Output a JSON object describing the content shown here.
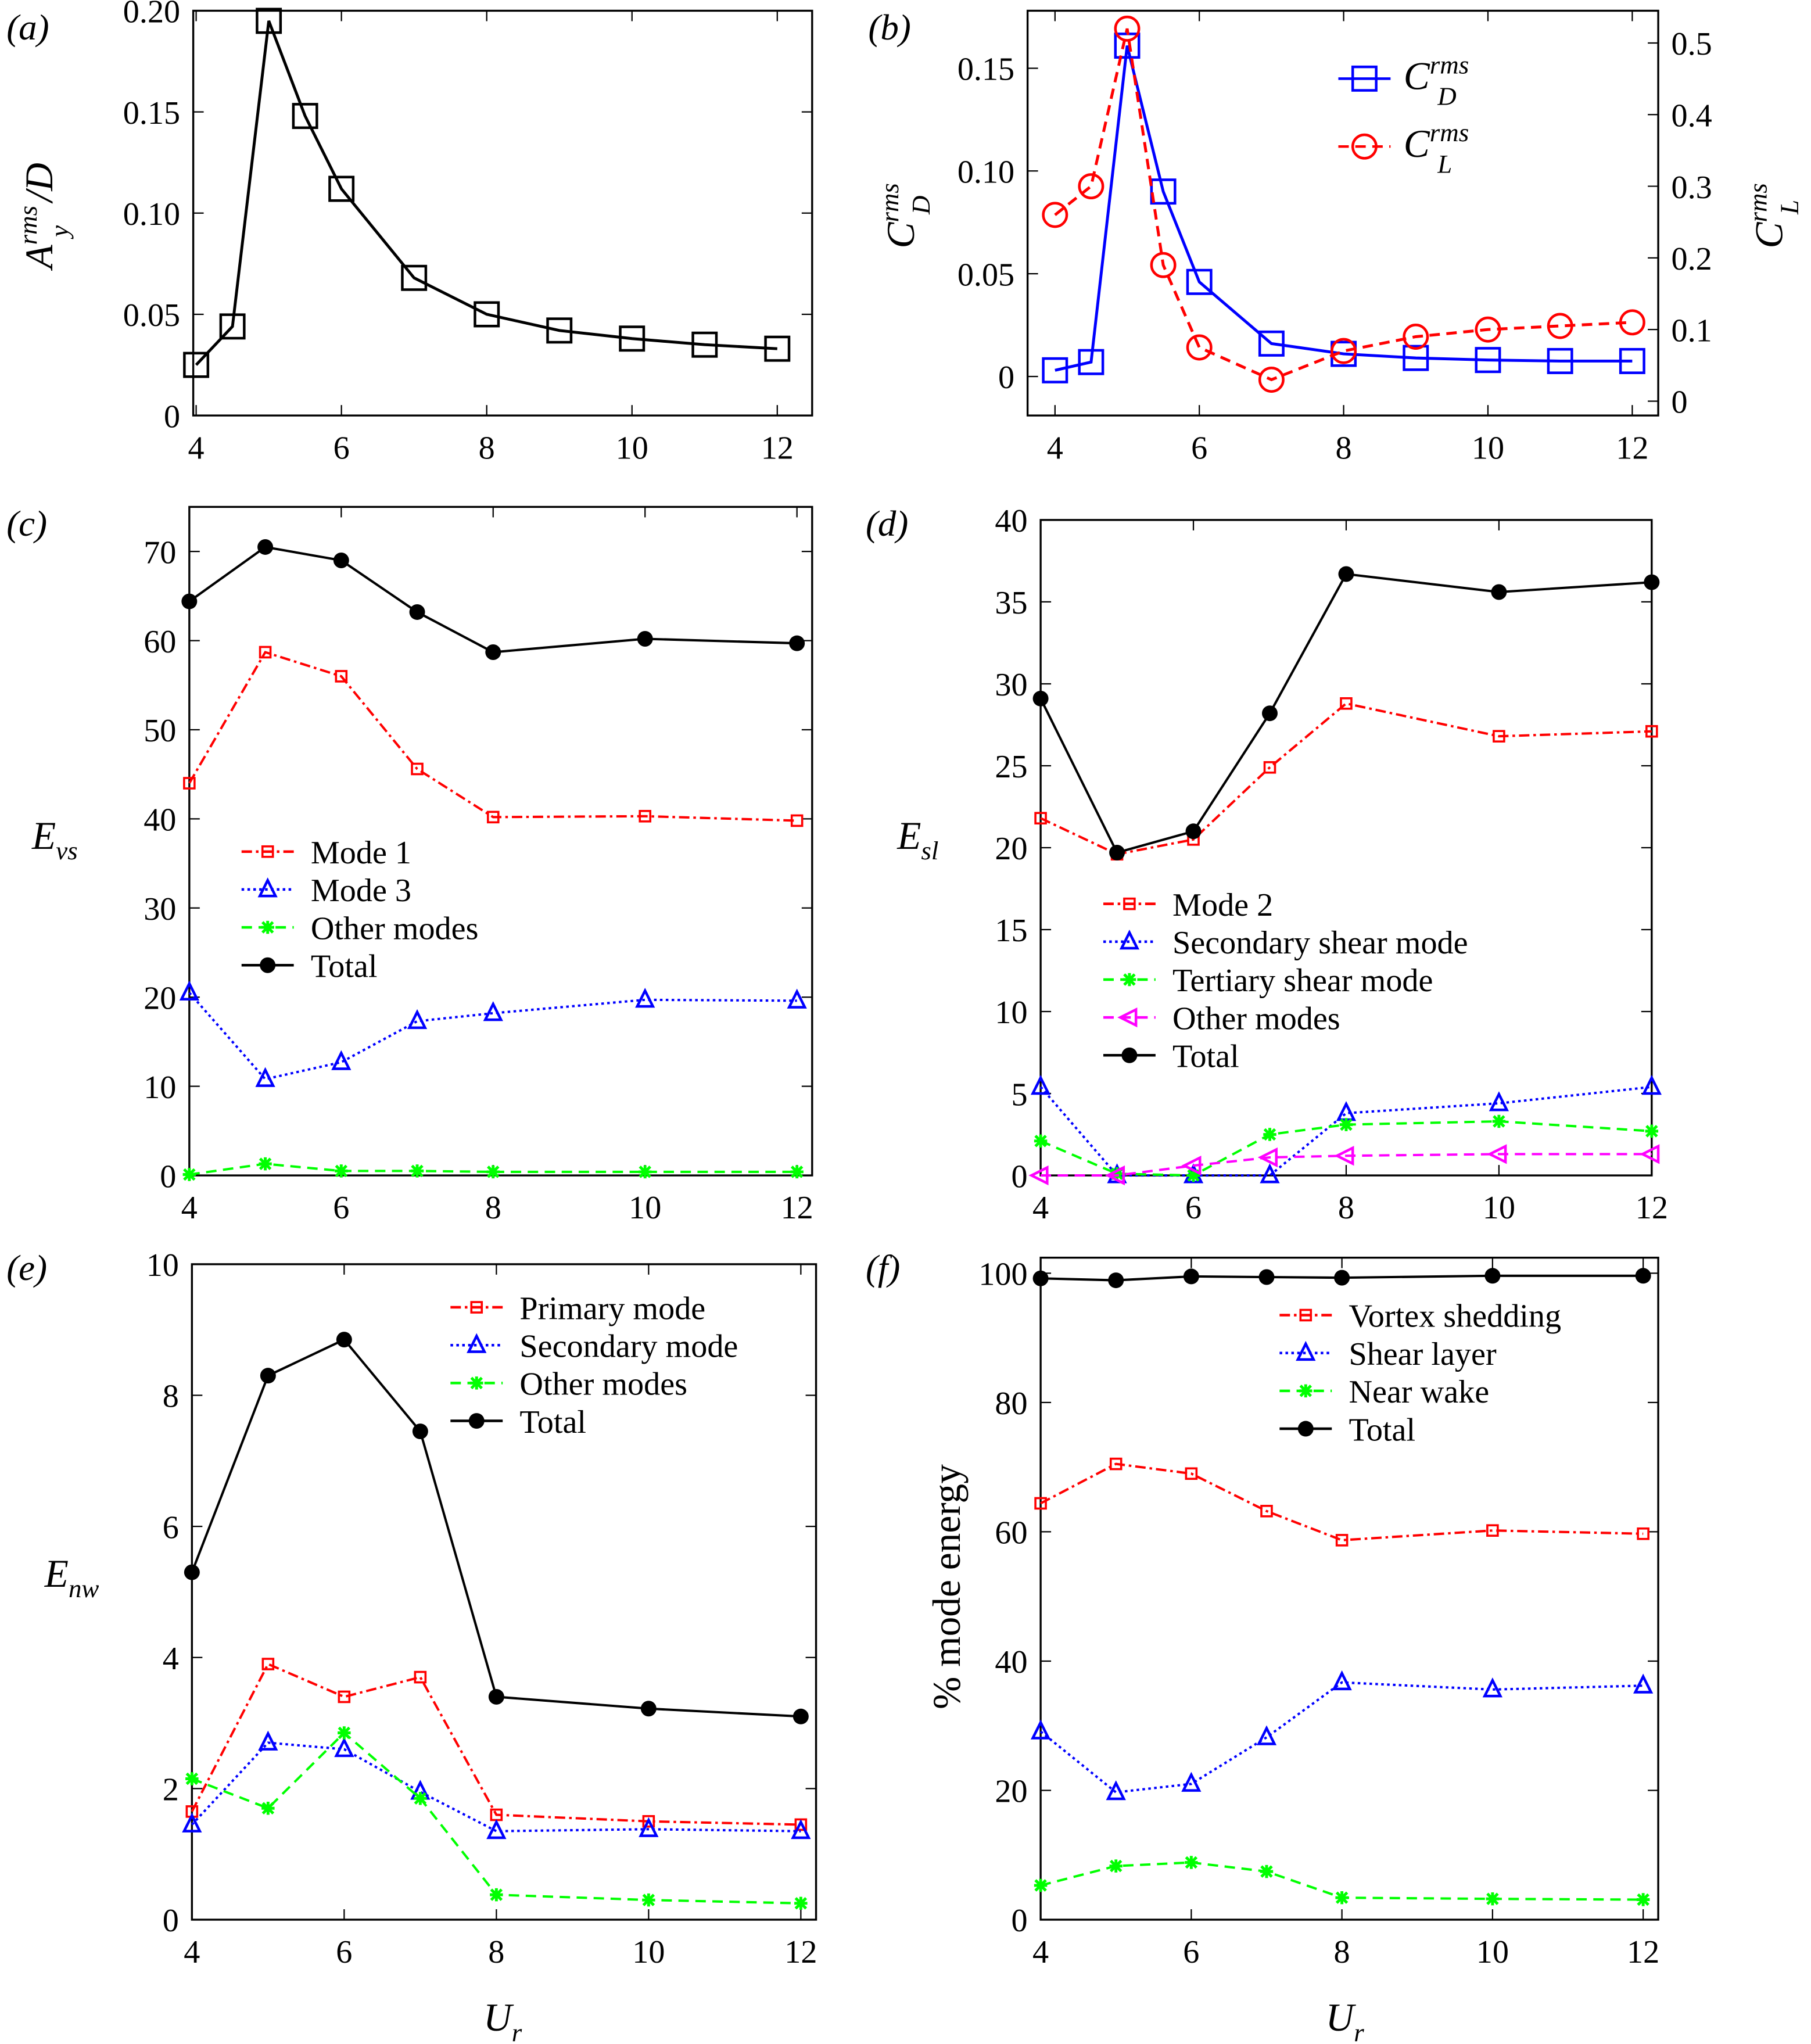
{
  "chart_data": [
    {
      "panel": "(a)",
      "type": "line",
      "ylabel": {
        "base": "A",
        "sub": "y",
        "sup": "rms",
        "suffix": "/D"
      },
      "xlabel": "",
      "x_ticks": [
        "4",
        "6",
        "8",
        "10",
        "12"
      ],
      "y_ticks": [
        "0",
        "0.05",
        "0.10",
        "0.15",
        "0.20"
      ],
      "xlim": [
        3.96,
        12.48
      ],
      "ylim": [
        0,
        0.2
      ],
      "grid": false,
      "x": [
        4,
        4.5,
        5,
        5.5,
        6,
        7,
        8,
        9,
        10,
        11,
        12
      ],
      "series": [
        {
          "values": [
            0.025,
            0.044,
            0.195,
            0.148,
            0.112,
            0.068,
            0.05,
            0.042,
            0.038,
            0.035,
            0.033
          ],
          "color": "#000000",
          "marker": "square",
          "line": "solid"
        }
      ]
    },
    {
      "panel": "(b)",
      "type": "line",
      "ylabel": {
        "base": "C",
        "sub": "D",
        "sup": "rms"
      },
      "y2label": {
        "base": "C",
        "sub": "L",
        "sup": "rms"
      },
      "x_ticks": [
        "4",
        "6",
        "8",
        "10",
        "12"
      ],
      "y_ticks": [
        "0",
        "0.05",
        "0.10",
        "0.15"
      ],
      "y2_ticks": [
        "0",
        "0.1",
        "0.2",
        "0.3",
        "0.4",
        "0.5"
      ],
      "xlim": [
        3.62,
        12.36
      ],
      "ylim": [
        -0.019,
        0.178
      ],
      "y2lim": [
        -0.02,
        0.545
      ],
      "grid": false,
      "legend_position": "top-right",
      "x": [
        4,
        4.5,
        5,
        5.5,
        6,
        7,
        8,
        9,
        10,
        11,
        12
      ],
      "series": [
        {
          "name": {
            "base": "C",
            "sub": "D",
            "sup": "rms"
          },
          "values": [
            0.003,
            0.007,
            0.161,
            0.09,
            0.046,
            0.016,
            0.011,
            0.009,
            0.008,
            0.0075,
            0.0075
          ],
          "color": "#0000ff",
          "marker": "square",
          "line": "solid",
          "axis": "left"
        },
        {
          "name": {
            "base": "C",
            "sub": "L",
            "sup": "rms"
          },
          "values": [
            0.26,
            0.3,
            0.52,
            0.19,
            0.075,
            0.03,
            0.07,
            0.09,
            0.1,
            0.105,
            0.11
          ],
          "color": "#ff0000",
          "marker": "circle",
          "line": "dashed",
          "axis": "right"
        }
      ]
    },
    {
      "panel": "(c)",
      "type": "line",
      "ylabel": {
        "base": "E",
        "sub": "vs"
      },
      "x_ticks": [
        "4",
        "6",
        "8",
        "10",
        "12"
      ],
      "y_ticks": [
        "0",
        "10",
        "20",
        "30",
        "40",
        "50",
        "60",
        "70"
      ],
      "xlim": [
        4,
        12.2
      ],
      "ylim": [
        0,
        75
      ],
      "grid": false,
      "legend_position": "center-left",
      "x": [
        4,
        5,
        6,
        7,
        8,
        10,
        12
      ],
      "series": [
        {
          "name": "Mode 1",
          "values": [
            44,
            58.7,
            56,
            45.6,
            40.2,
            40.3,
            39.8
          ],
          "color": "#ff0000",
          "marker": "smallsquare",
          "line": "dashdot"
        },
        {
          "name": "Mode 3",
          "values": [
            20.5,
            10.8,
            12.7,
            17.3,
            18.2,
            19.7,
            19.6
          ],
          "color": "#0000ff",
          "marker": "triangle",
          "line": "dotted"
        },
        {
          "name": "Other modes",
          "values": [
            0.1,
            1.3,
            0.5,
            0.5,
            0.4,
            0.4,
            0.4
          ],
          "color": "#00ff00",
          "marker": "star",
          "line": "dashed"
        },
        {
          "name": "Total",
          "values": [
            64.4,
            70.5,
            69,
            63.2,
            58.7,
            60.2,
            59.7
          ],
          "color": "#000000",
          "marker": "dot",
          "line": "solid"
        }
      ]
    },
    {
      "panel": "(d)",
      "type": "line",
      "ylabel": {
        "base": "E",
        "sub": "sl"
      },
      "x_ticks": [
        "4",
        "6",
        "8",
        "10",
        "12"
      ],
      "y_ticks": [
        "0",
        "5",
        "10",
        "15",
        "20",
        "25",
        "30",
        "35",
        "40"
      ],
      "xlim": [
        4,
        12
      ],
      "ylim": [
        0,
        40
      ],
      "grid": false,
      "legend_position": "bottom-center",
      "x": [
        4,
        5,
        6,
        7,
        8,
        10,
        12
      ],
      "series": [
        {
          "name": "Mode 2",
          "values": [
            21.8,
            19.6,
            20.5,
            24.9,
            28.8,
            26.8,
            27.1
          ],
          "color": "#ff0000",
          "marker": "smallsquare",
          "line": "dashdot"
        },
        {
          "name": "Secondary shear mode",
          "values": [
            5.4,
            0,
            0,
            0,
            3.8,
            4.4,
            5.4
          ],
          "color": "#0000ff",
          "marker": "triangle",
          "line": "dotted"
        },
        {
          "name": "Tertiary shear mode",
          "values": [
            2.1,
            0.1,
            0,
            2.5,
            3.1,
            3.3,
            2.7
          ],
          "color": "#00ff00",
          "marker": "star",
          "line": "dashed"
        },
        {
          "name": "Other modes",
          "values": [
            0,
            0,
            0.6,
            1.1,
            1.2,
            1.3,
            1.3
          ],
          "color": "#ff00ff",
          "marker": "lefttriangle",
          "line": "dashed"
        },
        {
          "name": "Total",
          "values": [
            29.1,
            19.7,
            21.0,
            28.2,
            36.7,
            35.6,
            36.2
          ],
          "color": "#000000",
          "marker": "dot",
          "line": "solid"
        }
      ]
    },
    {
      "panel": "(e)",
      "type": "line",
      "ylabel": {
        "base": "E",
        "sub": "nw"
      },
      "xlabel": {
        "base": "U",
        "sub": "r"
      },
      "x_ticks": [
        "4",
        "6",
        "8",
        "10",
        "12"
      ],
      "y_ticks": [
        "0",
        "2",
        "4",
        "6",
        "8",
        "10"
      ],
      "xlim": [
        4,
        12.2
      ],
      "ylim": [
        0,
        10
      ],
      "grid": false,
      "legend_position": "top-right",
      "x": [
        4,
        5,
        6,
        7,
        8,
        10,
        12
      ],
      "series": [
        {
          "name": "Primary mode",
          "values": [
            1.65,
            3.9,
            3.4,
            3.7,
            1.6,
            1.5,
            1.45
          ],
          "color": "#ff0000",
          "marker": "smallsquare",
          "line": "dashdot"
        },
        {
          "name": "Secondary mode",
          "values": [
            1.45,
            2.7,
            2.6,
            1.95,
            1.35,
            1.38,
            1.35
          ],
          "color": "#0000ff",
          "marker": "triangle",
          "line": "dotted"
        },
        {
          "name": "Other modes",
          "values": [
            2.15,
            1.7,
            2.85,
            1.85,
            0.38,
            0.3,
            0.25
          ],
          "color": "#00ff00",
          "marker": "star",
          "line": "dashed"
        },
        {
          "name": "Total",
          "values": [
            5.3,
            8.3,
            8.85,
            7.45,
            3.4,
            3.22,
            3.1
          ],
          "color": "#000000",
          "marker": "dot",
          "line": "solid"
        }
      ]
    },
    {
      "panel": "(f)",
      "type": "line",
      "ylabel": {
        "base": "% mode energy"
      },
      "xlabel": {
        "base": "U",
        "sub": "r"
      },
      "x_ticks": [
        "4",
        "6",
        "8",
        "10",
        "12"
      ],
      "y_ticks": [
        "0",
        "20",
        "40",
        "60",
        "80",
        "100"
      ],
      "xlim": [
        4,
        12.2
      ],
      "ylim": [
        0,
        102.4
      ],
      "grid": false,
      "legend_position": "top-right",
      "x": [
        4,
        5,
        6,
        7,
        8,
        10,
        12
      ],
      "series": [
        {
          "name": "Vortex shedding",
          "values": [
            64.4,
            70.5,
            69,
            63.2,
            58.7,
            60.2,
            59.7
          ],
          "color": "#ff0000",
          "marker": "smallsquare",
          "line": "dashdot"
        },
        {
          "name": "Shear layer",
          "values": [
            29.1,
            19.7,
            21.0,
            28.2,
            36.7,
            35.6,
            36.2
          ],
          "color": "#0000ff",
          "marker": "triangle",
          "line": "dotted"
        },
        {
          "name": "Near wake",
          "values": [
            5.3,
            8.3,
            8.85,
            7.45,
            3.4,
            3.22,
            3.1
          ],
          "color": "#00ff00",
          "marker": "star",
          "line": "dashed"
        },
        {
          "name": "Total",
          "values": [
            99.2,
            98.9,
            99.5,
            99.4,
            99.3,
            99.6,
            99.6
          ],
          "color": "#000000",
          "marker": "dot",
          "line": "solid"
        }
      ]
    }
  ]
}
